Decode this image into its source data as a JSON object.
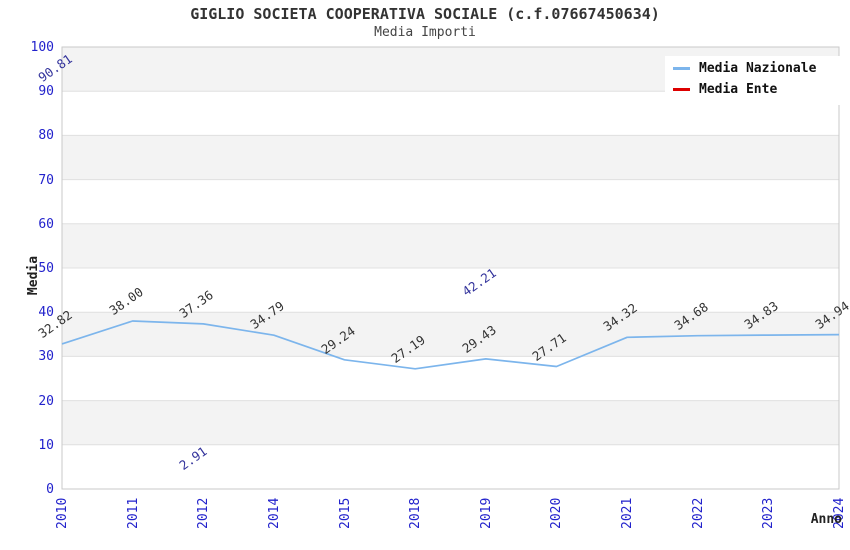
{
  "header": {
    "title": "GIGLIO SOCIETA COOPERATIVA SOCIALE (c.f.07667450634)",
    "subtitle": "Media Importi"
  },
  "axes": {
    "y_title": "Media",
    "x_title": "Anno",
    "y_ticks": [
      0,
      10,
      20,
      30,
      40,
      50,
      60,
      70,
      80,
      90,
      100
    ],
    "x_ticks": [
      "2010",
      "2011",
      "2012",
      "2014",
      "2015",
      "2018",
      "2019",
      "2020",
      "2021",
      "2022",
      "2023",
      "2024"
    ],
    "tick_color": "#2222cc"
  },
  "legend": {
    "items": [
      {
        "label": "Media Nazionale",
        "color": "#7cb5ec"
      },
      {
        "label": "Media Ente",
        "color": "#dd0000"
      }
    ]
  },
  "chart_data": {
    "type": "line",
    "title": "GIGLIO SOCIETA COOPERATIVA SOCIALE (c.f.07667450634)",
    "subtitle": "Media Importi",
    "xlabel": "Anno",
    "ylabel": "Media",
    "ylim": [
      0,
      100
    ],
    "grid": true,
    "band_colors": [
      "#f3f3f3",
      "#ffffff"
    ],
    "legend_position": "top-right",
    "categories": [
      "2010",
      "2011",
      "2012",
      "2014",
      "2015",
      "2018",
      "2019",
      "2020",
      "2021",
      "2022",
      "2023",
      "2024"
    ],
    "series": [
      {
        "name": "Media Nazionale",
        "color": "#7cb5ec",
        "label_color": "#333333",
        "draw_line": true,
        "values": [
          32.82,
          38.0,
          37.36,
          34.79,
          29.24,
          27.19,
          29.43,
          27.71,
          34.32,
          34.68,
          34.83,
          34.94
        ],
        "labels": [
          "32.82",
          "38.00",
          "37.36",
          "34.79",
          "29.24",
          "27.19",
          "29.43",
          "27.71",
          "34.32",
          "34.68",
          "34.83",
          "34.94"
        ]
      },
      {
        "name": "Media Ente",
        "color": "#dd0000",
        "label_color": "#32329b",
        "draw_line": true,
        "values": [
          90.81,
          null,
          2.91,
          null,
          null,
          null,
          42.21,
          null,
          null,
          null,
          null,
          null
        ],
        "labels": [
          "90.81",
          null,
          "2.91",
          null,
          null,
          null,
          "42.21",
          null,
          null,
          null,
          null,
          null
        ]
      }
    ]
  }
}
